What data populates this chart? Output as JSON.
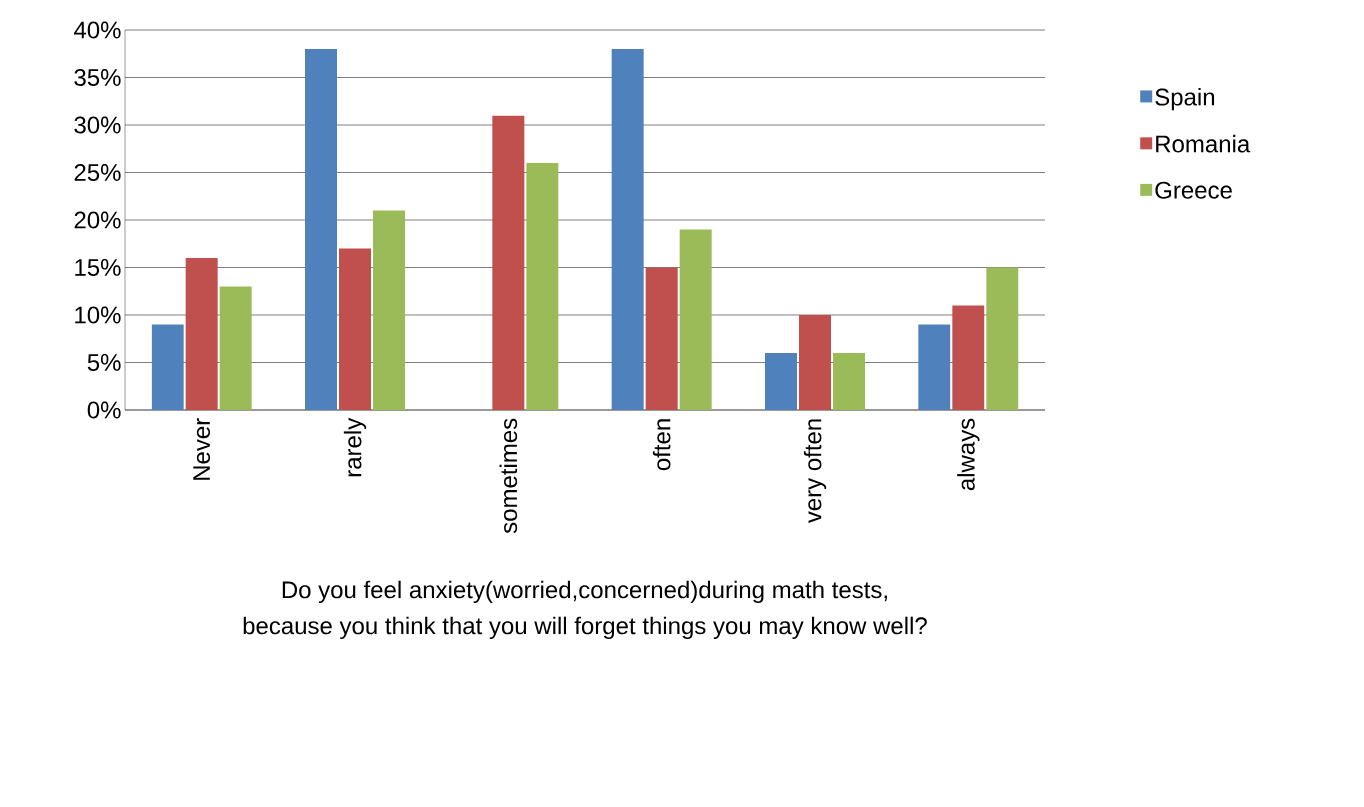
{
  "chart_data": {
    "type": "bar",
    "xlabel": "Do you feel anxiety(worried,concerned)during math tests, because you think that you will forget things you may know well?",
    "categories": [
      "Never",
      "rarely",
      "sometimes",
      "often",
      "very often",
      "always"
    ],
    "series": [
      {
        "name": "Spain",
        "color": "#4f81bd",
        "values": [
          9,
          38,
          0,
          38,
          6,
          9
        ]
      },
      {
        "name": "Romania",
        "color": "#c0504d",
        "values": [
          16,
          17,
          31,
          15,
          10,
          11
        ]
      },
      {
        "name": "Greece",
        "color": "#9bbb59",
        "values": [
          13,
          21,
          26,
          19,
          6,
          15
        ]
      }
    ],
    "ylim": [
      0,
      40
    ],
    "yticks": [
      {
        "value": 0,
        "label": "0%"
      },
      {
        "value": 5,
        "label": "5%"
      },
      {
        "value": 10,
        "label": "10%"
      },
      {
        "value": 15,
        "label": "15%"
      },
      {
        "value": 20,
        "label": "20%"
      },
      {
        "value": 25,
        "label": "25%"
      },
      {
        "value": 30,
        "label": "30%"
      },
      {
        "value": 35,
        "label": "35%"
      },
      {
        "value": 40,
        "label": "40%"
      }
    ],
    "grid": "y",
    "legend": "right"
  }
}
